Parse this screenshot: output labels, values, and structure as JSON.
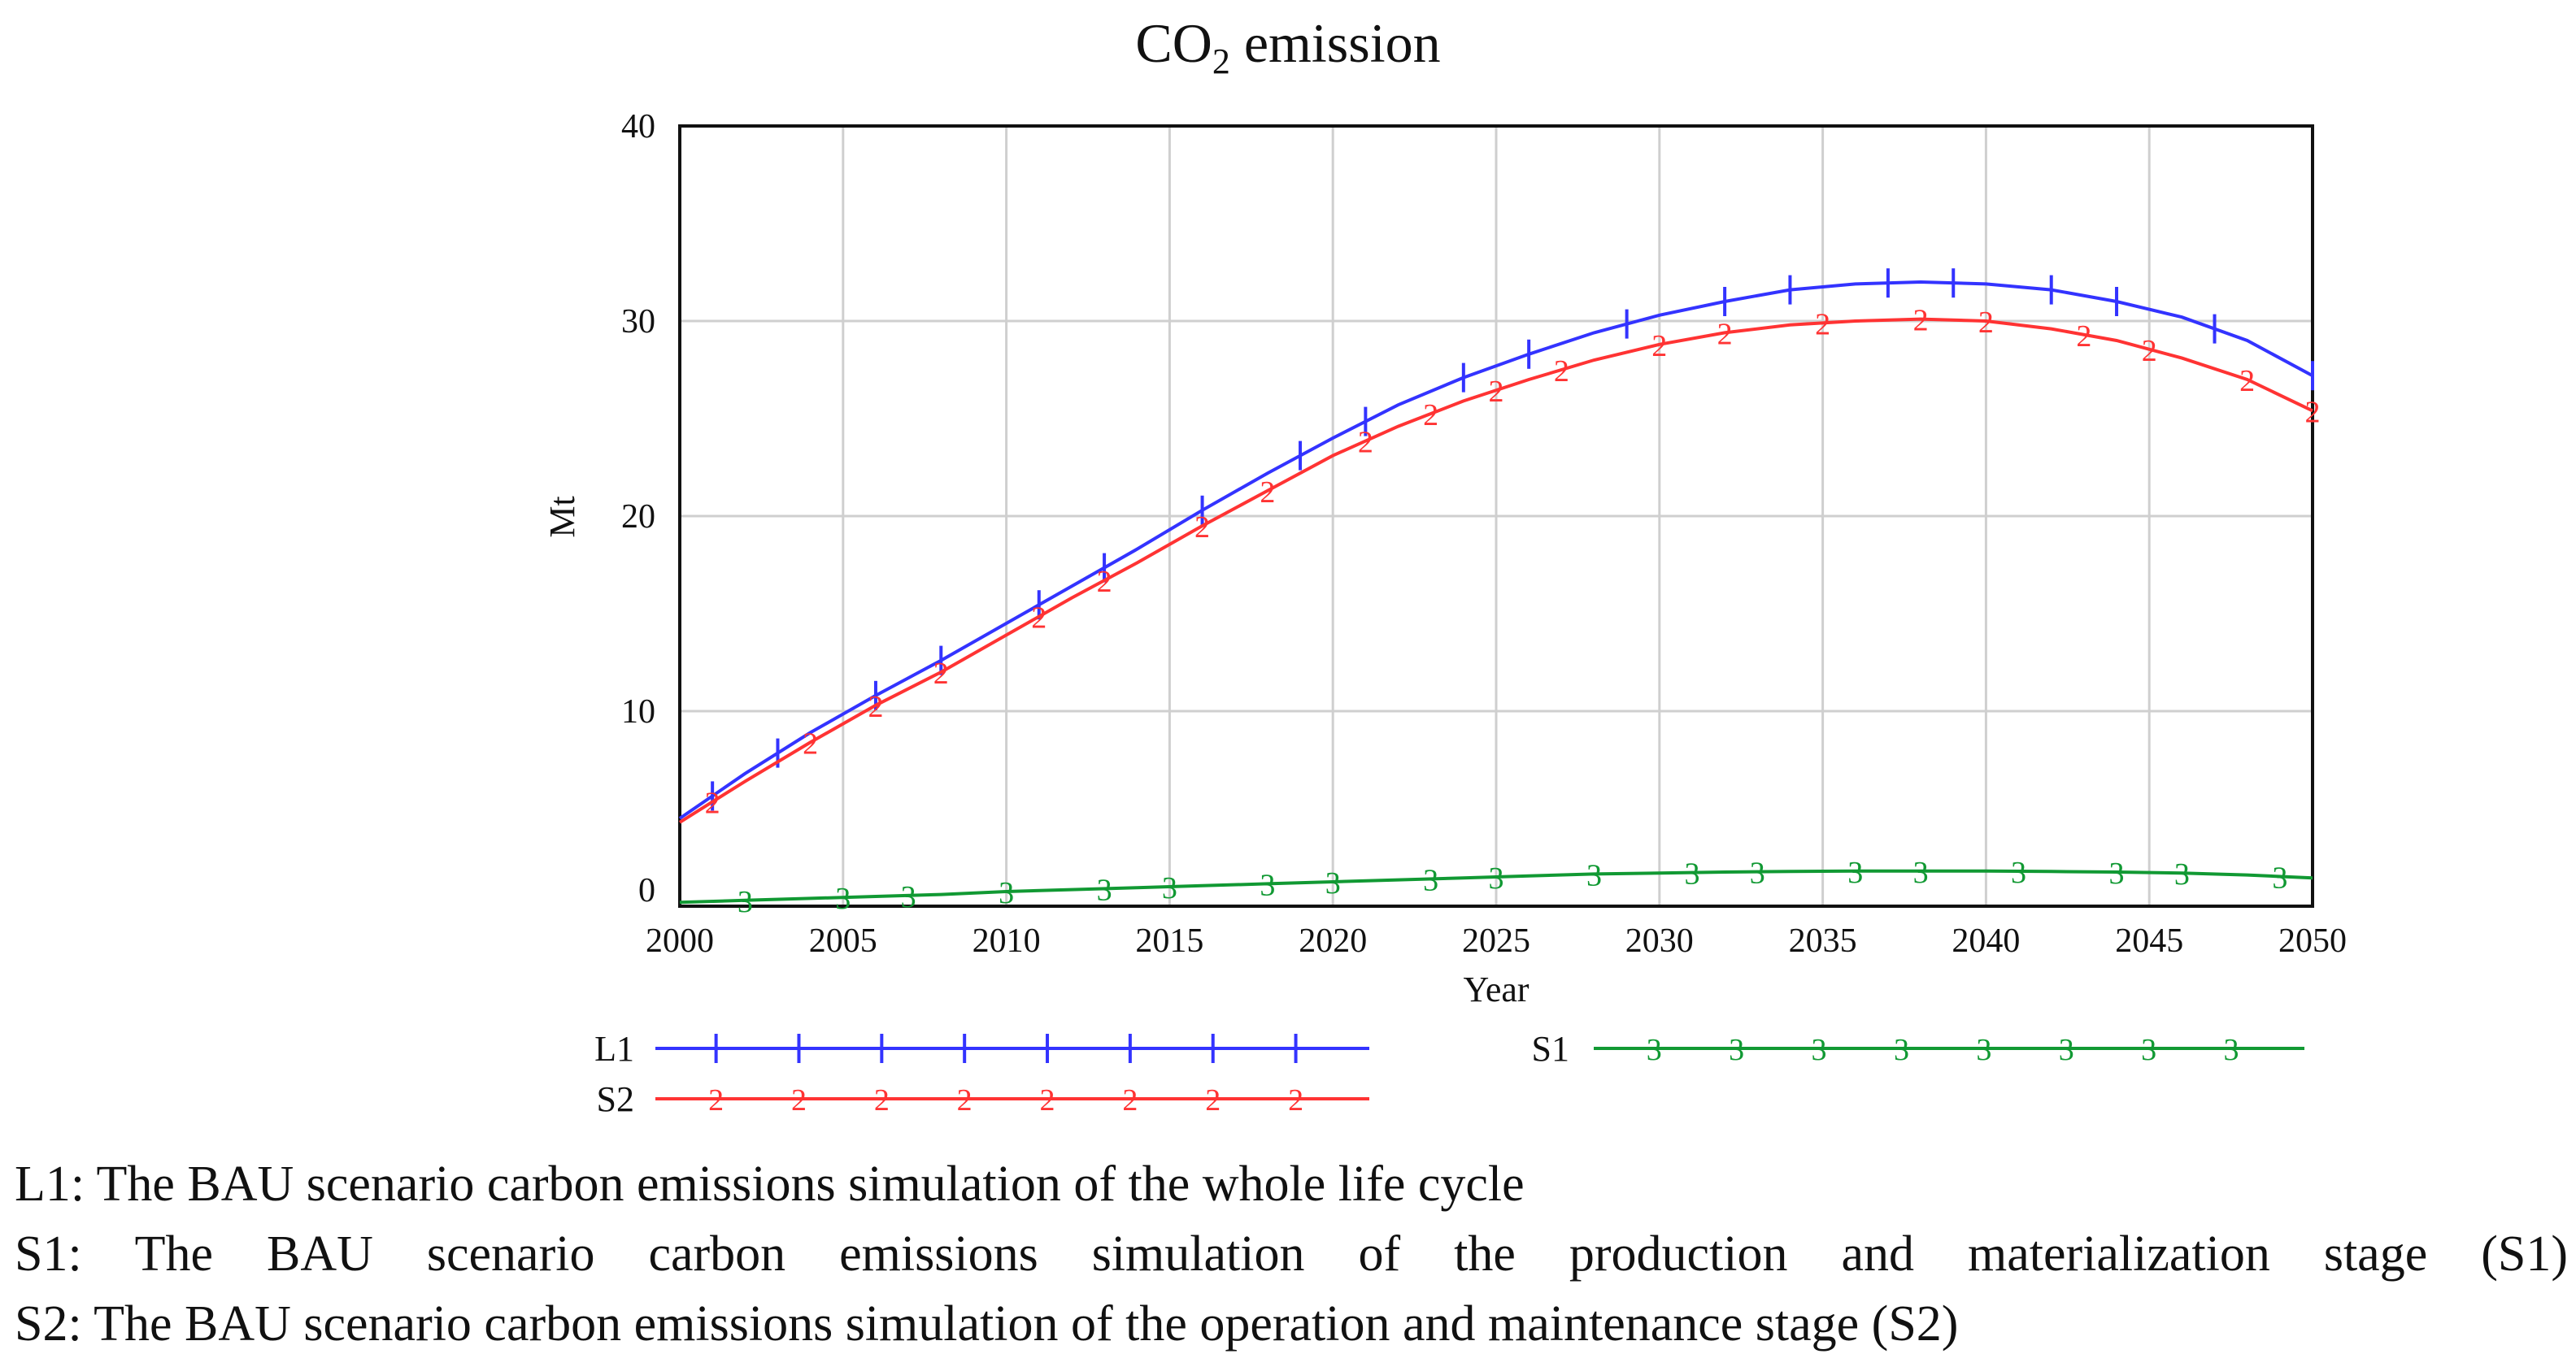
{
  "chart_data": {
    "type": "line",
    "title_prefix": "CO",
    "title_subscript": "2",
    "title_suffix": " emission",
    "xlabel": "Year",
    "ylabel": "Mt",
    "xlim": [
      2000,
      2050
    ],
    "ylim": [
      0,
      40
    ],
    "x_ticks": [
      2000,
      2005,
      2010,
      2015,
      2020,
      2025,
      2030,
      2035,
      2040,
      2045,
      2050
    ],
    "y_ticks": [
      0,
      10,
      20,
      30,
      40
    ],
    "grid": true,
    "x": [
      2000,
      2002,
      2004,
      2006,
      2008,
      2010,
      2012,
      2014,
      2016,
      2018,
      2020,
      2022,
      2024,
      2026,
      2028,
      2030,
      2032,
      2034,
      2036,
      2038,
      2040,
      2042,
      2044,
      2046,
      2048,
      2050
    ],
    "series": [
      {
        "id": "L1",
        "name": "L1",
        "marker": "1",
        "color": "#3333ff",
        "values": [
          4.5,
          6.8,
          8.9,
          10.8,
          12.6,
          14.5,
          16.4,
          18.3,
          20.3,
          22.2,
          24.0,
          25.7,
          27.1,
          28.3,
          29.4,
          30.3,
          31.0,
          31.6,
          31.9,
          32.0,
          31.9,
          31.6,
          31.0,
          30.2,
          29.0,
          27.2
        ],
        "marker_x": [
          2001,
          2003,
          2006,
          2008,
          2011,
          2013,
          2016,
          2019,
          2021,
          2024,
          2026,
          2029,
          2032,
          2034,
          2037,
          2039,
          2042,
          2044,
          2047,
          2050
        ]
      },
      {
        "id": "S2",
        "name": "S2",
        "marker": "2",
        "color": "#ff3333",
        "values": [
          4.3,
          6.4,
          8.4,
          10.3,
          12.0,
          13.9,
          15.8,
          17.6,
          19.5,
          21.3,
          23.1,
          24.6,
          25.9,
          27.0,
          28.0,
          28.8,
          29.4,
          29.8,
          30.0,
          30.1,
          30.0,
          29.6,
          29.0,
          28.1,
          27.0,
          25.4
        ],
        "marker_x": [
          2001,
          2004,
          2006,
          2008,
          2011,
          2013,
          2016,
          2018,
          2021,
          2023,
          2025,
          2027,
          2030,
          2032,
          2035,
          2038,
          2040,
          2043,
          2045,
          2048,
          2050
        ]
      },
      {
        "id": "S1",
        "name": "S1",
        "marker": "3",
        "color": "#119933",
        "values": [
          0.2,
          0.3,
          0.4,
          0.5,
          0.6,
          0.75,
          0.85,
          0.95,
          1.05,
          1.15,
          1.25,
          1.35,
          1.45,
          1.55,
          1.65,
          1.7,
          1.75,
          1.78,
          1.8,
          1.8,
          1.8,
          1.78,
          1.75,
          1.7,
          1.6,
          1.45
        ],
        "marker_x": [
          2002,
          2005,
          2007,
          2010,
          2013,
          2015,
          2018,
          2020,
          2023,
          2025,
          2028,
          2031,
          2033,
          2036,
          2038,
          2041,
          2044,
          2046,
          2049
        ]
      }
    ],
    "legend_position": "bottom",
    "legend": [
      {
        "series_id": "L1",
        "label": "L1",
        "marker_count": 8
      },
      {
        "series_id": "S1",
        "label": "S1",
        "marker_count": 8
      },
      {
        "series_id": "S2",
        "label": "S2",
        "marker_count": 8
      }
    ]
  },
  "captions": {
    "l1": "L1: The BAU scenario carbon emissions simulation of the whole life cycle",
    "s1": "S1: The BAU scenario carbon emissions simulation of the production and materialization stage (S1)",
    "s2": "S2: The BAU scenario carbon emissions simulation of the operation and maintenance stage (S2)"
  }
}
